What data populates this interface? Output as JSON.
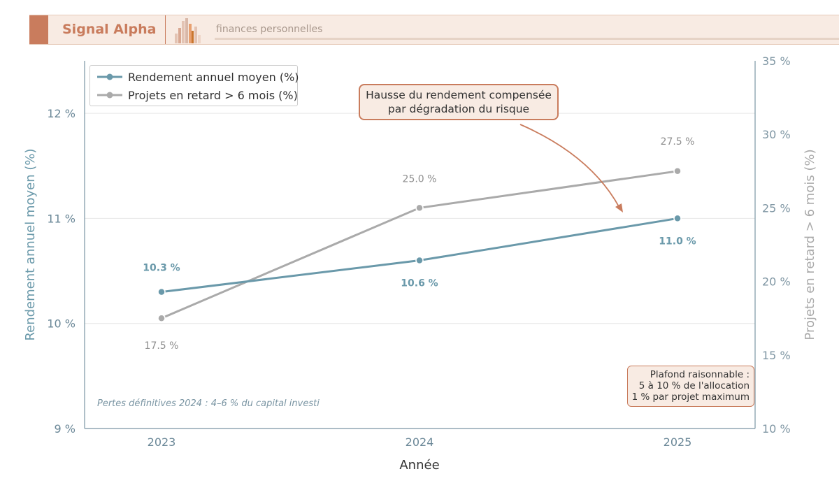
{
  "header": {
    "brand": "Signal Alpha",
    "tagline": "finances personnelles"
  },
  "colors": {
    "accent": "#c97c5d",
    "series_rendement": "#6a99aa",
    "series_retard": "#aaaaaa",
    "callout_bg": "#f8ebe3"
  },
  "chart_data": {
    "type": "line",
    "x": [
      "2023",
      "2024",
      "2025"
    ],
    "xlabel": "Année",
    "ylabel_left": "Rendement annuel moyen (%)",
    "ylabel_right": "Projets en retard > 6 mois (%)",
    "ylim_left": [
      9,
      12.5
    ],
    "ylim_right": [
      10,
      35
    ],
    "yticks_left": [
      "9 %",
      "10 %",
      "11 %",
      "12 %"
    ],
    "yticks_right": [
      "10 %",
      "15 %",
      "20 %",
      "25 %",
      "30 %",
      "35 %"
    ],
    "grid": true,
    "legend_position": "top-left",
    "series": [
      {
        "name": "Rendement annuel moyen (%)",
        "axis": "left",
        "values": [
          10.3,
          10.6,
          11.0
        ],
        "labels": [
          "10.3 %",
          "10.6 %",
          "11.0 %"
        ]
      },
      {
        "name": "Projets en retard > 6 mois (%)",
        "axis": "right",
        "values": [
          17.5,
          25.0,
          27.5
        ],
        "labels": [
          "17.5 %",
          "25.0 %",
          "27.5 %"
        ]
      }
    ],
    "annotations": {
      "callout": [
        "Hausse du rendement compensée",
        "par dégradation du risque"
      ],
      "plafond": [
        "Plafond raisonnable :",
        "5 à 10 % de l'allocation",
        "1 % par projet maximum"
      ],
      "note": "Pertes définitives 2024 : 4–6 % du capital investi"
    }
  }
}
